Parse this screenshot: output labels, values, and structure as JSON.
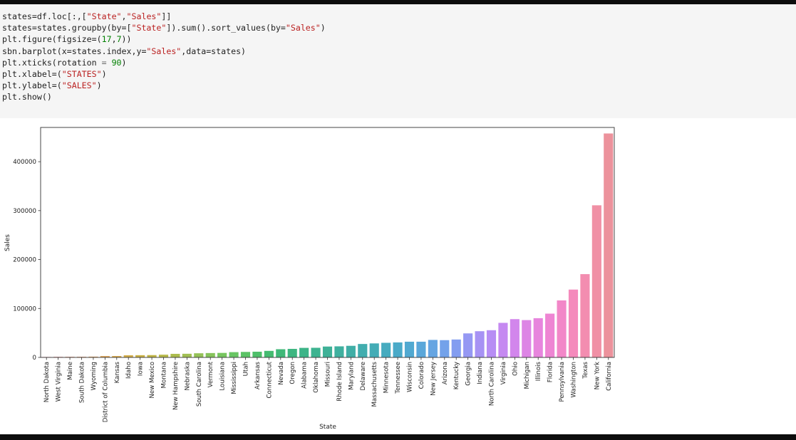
{
  "code_lines": [
    [
      {
        "t": "states=df.loc[:,["
      },
      {
        "t": "\"State\"",
        "c": "str"
      },
      {
        "t": ","
      },
      {
        "t": "\"Sales\"",
        "c": "str"
      },
      {
        "t": "]]"
      }
    ],
    [
      {
        "t": "states=states.groupby(by=["
      },
      {
        "t": "\"State\"",
        "c": "str"
      },
      {
        "t": "]).sum().sort_values(by="
      },
      {
        "t": "\"Sales\"",
        "c": "str"
      },
      {
        "t": ")"
      }
    ],
    [
      {
        "t": "plt.figure(figsize=("
      },
      {
        "t": "17",
        "c": "num"
      },
      {
        "t": ","
      },
      {
        "t": "7",
        "c": "num"
      },
      {
        "t": "))"
      }
    ],
    [
      {
        "t": "sbn.barplot(x=states.index,y="
      },
      {
        "t": "\"Sales\"",
        "c": "str"
      },
      {
        "t": ",data=states)"
      }
    ],
    [
      {
        "t": "plt.xticks(rotation "
      },
      {
        "t": "=",
        "c": "op"
      },
      {
        "t": " "
      },
      {
        "t": "90",
        "c": "num"
      },
      {
        "t": ")"
      }
    ],
    [
      {
        "t": "plt.xlabel=("
      },
      {
        "t": "\"STATES\"",
        "c": "str"
      },
      {
        "t": ")"
      }
    ],
    [
      {
        "t": "plt.ylabel=("
      },
      {
        "t": "\"SALES\"",
        "c": "str"
      },
      {
        "t": ")"
      }
    ],
    [
      {
        "t": "plt.show()"
      }
    ]
  ],
  "chart_data": {
    "type": "bar",
    "xlabel": "State",
    "ylabel": "Sales",
    "ylim": [
      0,
      470000
    ],
    "yticks": [
      0,
      100000,
      200000,
      300000,
      400000
    ],
    "ytick_labels": [
      "0",
      "100000",
      "200000",
      "300000",
      "400000"
    ],
    "grid": false,
    "categories": [
      "North Dakota",
      "West Virginia",
      "Maine",
      "South Dakota",
      "Wyoming",
      "District of Columbia",
      "Kansas",
      "Idaho",
      "Iowa",
      "New Mexico",
      "Montana",
      "New Hampshire",
      "Nebraska",
      "South Carolina",
      "Vermont",
      "Louisiana",
      "Mississippi",
      "Utah",
      "Arkansas",
      "Connecticut",
      "Nevada",
      "Oregon",
      "Alabama",
      "Oklahoma",
      "Missouri",
      "Rhode Island",
      "Maryland",
      "Delaware",
      "Massachusetts",
      "Minnesota",
      "Tennessee",
      "Wisconsin",
      "Colorado",
      "New Jersey",
      "Arizona",
      "Kentucky",
      "Georgia",
      "Indiana",
      "North Carolina",
      "Virginia",
      "Ohio",
      "Michigan",
      "Illinois",
      "Florida",
      "Pennsylvania",
      "Washington",
      "Texas",
      "New York",
      "California"
    ],
    "values": [
      920,
      1210,
      1270,
      1320,
      1600,
      2870,
      2910,
      4380,
      4580,
      4780,
      5590,
      7290,
      7460,
      8480,
      8930,
      9220,
      10770,
      11220,
      11680,
      13380,
      16730,
      17430,
      19510,
      19680,
      22210,
      22630,
      23710,
      27450,
      28630,
      29860,
      30660,
      32110,
      32110,
      35760,
      35280,
      36590,
      49100,
      53550,
      55600,
      70640,
      78260,
      76270,
      80170,
      89470,
      116510,
      138640,
      170190,
      310880,
      457690
    ],
    "colors": [
      "#ea96a3",
      "#eb9694",
      "#e99a83",
      "#e59e74",
      "#e2a265",
      "#dea65b",
      "#d8a951",
      "#d2ad4a",
      "#c9b146",
      "#c0b546",
      "#b7b94a",
      "#acbc4e",
      "#a1bf53",
      "#94c157",
      "#86c35b",
      "#77c55f",
      "#68c563",
      "#5bc366",
      "#4ebf6a",
      "#44bb70",
      "#3fb878",
      "#3db680",
      "#3db488",
      "#3db390",
      "#3eb197",
      "#3fb09f",
      "#40aea6",
      "#41adae",
      "#43acb6",
      "#46abbf",
      "#4aaac8",
      "#51a9d1",
      "#5aa7da",
      "#65a5e2",
      "#73a2ea",
      "#839df0",
      "#9598f3",
      "#a792f4",
      "#b78df4",
      "#c589f1",
      "#d286ec",
      "#dd85e5",
      "#e785dd",
      "#ee85d3",
      "#f287c8",
      "#f48abc",
      "#f38db0",
      "#f090a5",
      "#ec929c"
    ]
  }
}
